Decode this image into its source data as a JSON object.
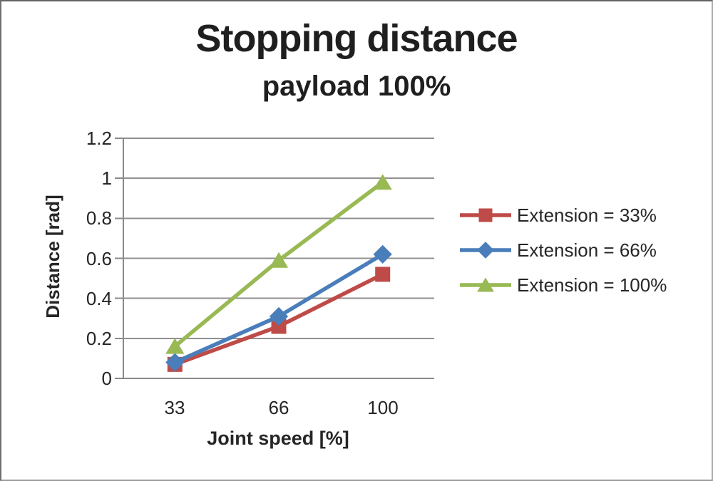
{
  "chart_data": {
    "type": "line",
    "title": "Stopping distance",
    "subtitle": "payload 100%",
    "xlabel": "Joint speed [%]",
    "ylabel": "Distance [rad]",
    "categories": [
      33,
      66,
      100
    ],
    "x_tick_labels": [
      "33",
      "66",
      "100"
    ],
    "y_ticks": [
      0,
      0.2,
      0.4,
      0.6,
      0.8,
      1,
      1.2
    ],
    "y_tick_labels": [
      "0",
      "0.2",
      "0.4",
      "0.6",
      "0.8",
      "1",
      "1.2"
    ],
    "ylim": [
      0,
      1.2
    ],
    "grid": "horizontal",
    "legend_position": "right",
    "axis_color": "#8a8a8a",
    "grid_color": "#909090",
    "text_color": "#262626",
    "series": [
      {
        "name": "Extension = 33%",
        "marker": "square",
        "color": "#be4b48",
        "values": [
          0.07,
          0.26,
          0.52
        ]
      },
      {
        "name": "Extension = 66%",
        "marker": "diamond",
        "color": "#4a7ebb",
        "values": [
          0.08,
          0.31,
          0.62
        ]
      },
      {
        "name": "Extension = 100%",
        "marker": "triangle",
        "color": "#98b954",
        "values": [
          0.16,
          0.59,
          0.98
        ]
      }
    ]
  }
}
